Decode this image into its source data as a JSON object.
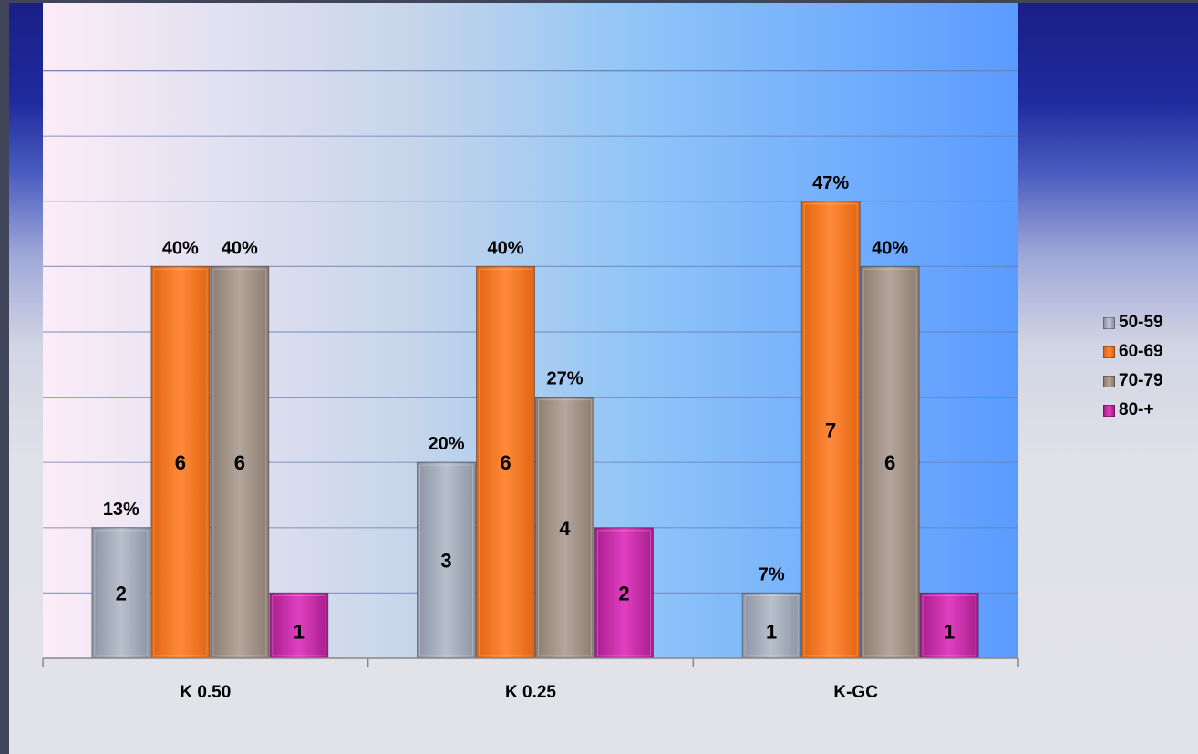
{
  "chart_data": {
    "type": "bar",
    "categories": [
      "K 0.50",
      "K 0.25",
      "K-GC"
    ],
    "series": [
      {
        "name": "50-59",
        "values": [
          2,
          3,
          1
        ],
        "percents": [
          "13%",
          "20%",
          "7%"
        ],
        "color": "#a9b2c0"
      },
      {
        "name": "60-69",
        "values": [
          6,
          6,
          7
        ],
        "percents": [
          "40%",
          "40%",
          "47%"
        ],
        "color": "#f07218"
      },
      {
        "name": "70-79",
        "values": [
          6,
          4,
          6
        ],
        "percents": [
          "40%",
          "27%",
          "40%"
        ],
        "color": "#a49488"
      },
      {
        "name": "80-+",
        "values": [
          1,
          2,
          1
        ],
        "percents": [
          "",
          "",
          ""
        ],
        "color": "#c82aa6"
      }
    ],
    "ylim": [
      0,
      8
    ],
    "grid": true,
    "legend_position": "right",
    "title": "",
    "xlabel": "",
    "ylabel": ""
  },
  "legend": {
    "items": [
      "50-59",
      "60-69",
      "70-79",
      "80-+"
    ]
  }
}
